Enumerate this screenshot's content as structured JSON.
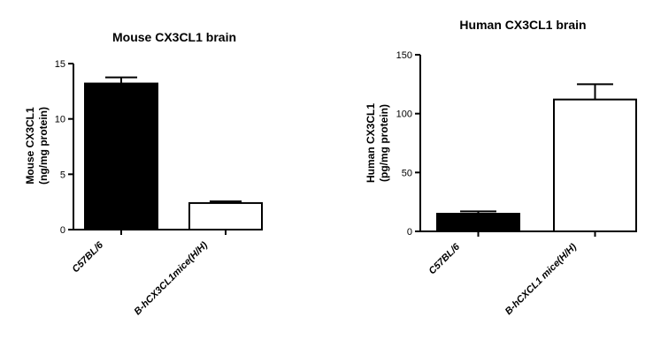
{
  "chart_data": [
    {
      "type": "bar",
      "title": "Mouse CX3CL1 brain",
      "ylabel_lines": [
        "Mouse CX3CL1",
        "(ng/mg protein)"
      ],
      "categories": [
        "C57BL/6",
        "B-hCX3CL1mice(H/H)"
      ],
      "values": [
        13.2,
        2.4
      ],
      "errors": [
        0.55,
        0.15
      ],
      "ylim": [
        0,
        15
      ],
      "yticks": [
        0,
        5,
        10,
        15
      ],
      "bar_colors": [
        "#000000",
        "#ffffff"
      ]
    },
    {
      "type": "bar",
      "title": "Human CX3CL1 brain",
      "ylabel_lines": [
        "Human CX3CL1",
        "(pg/mg protein)"
      ],
      "categories": [
        "C57BL/6",
        "B-hCXCL1 mice(H/H)"
      ],
      "values": [
        15,
        112
      ],
      "errors": [
        2,
        13
      ],
      "ylim": [
        0,
        150
      ],
      "yticks": [
        0,
        50,
        100,
        150
      ],
      "bar_colors": [
        "#000000",
        "#ffffff"
      ]
    }
  ]
}
